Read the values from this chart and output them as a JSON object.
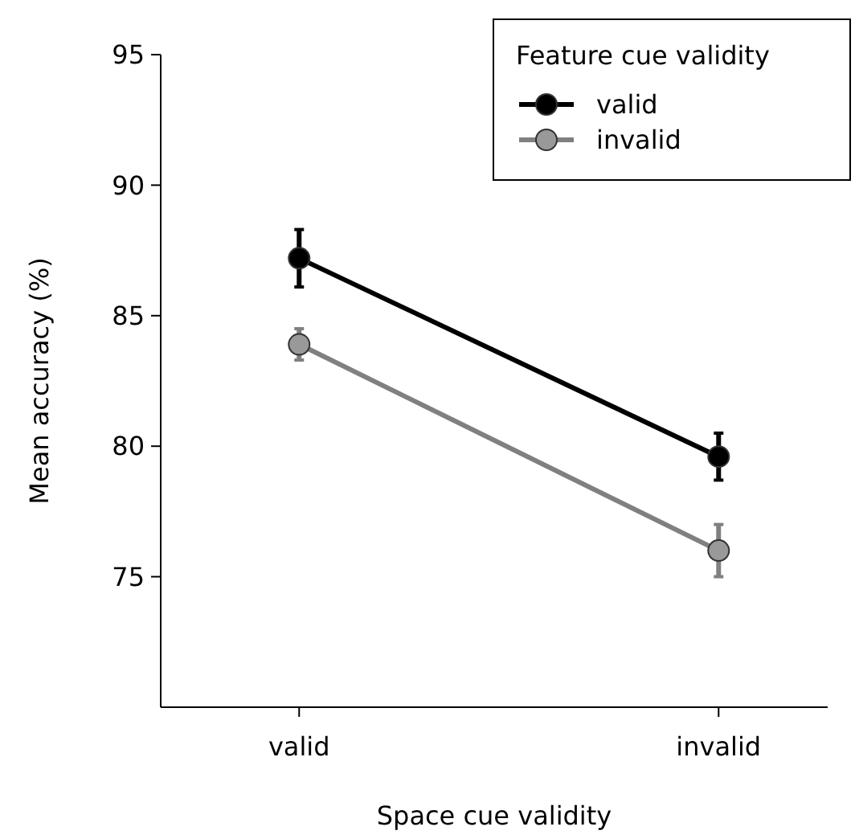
{
  "chart_data": {
    "type": "line",
    "xlabel": "Space cue validity",
    "ylabel": "Mean accuracy (%)",
    "legend_title": "Feature cue validity",
    "categories": [
      "valid",
      "invalid"
    ],
    "series": [
      {
        "name": "valid",
        "color": "#000000",
        "values": [
          87.2,
          79.6
        ],
        "errors": [
          1.1,
          0.9
        ]
      },
      {
        "name": "invalid",
        "color": "#808080",
        "values": [
          83.9,
          76.0
        ],
        "errors": [
          0.6,
          1.0
        ]
      }
    ],
    "ylim": [
      70,
      95
    ],
    "yticks": [
      75,
      80,
      85,
      90,
      95
    ],
    "marker": "circle",
    "line_style": "solid",
    "legend": "top right",
    "grid": false
  }
}
